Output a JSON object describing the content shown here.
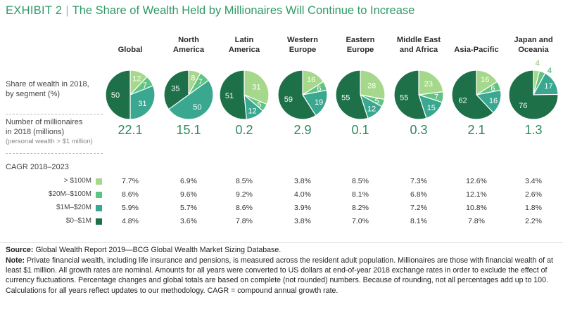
{
  "title": {
    "exhibit": "EXHIBIT 2",
    "text": "The Share of Wealth Held by Millionaires Will Continue to Increase"
  },
  "row_labels": {
    "share": [
      "Share of wealth in 2018,",
      "by segment (%)"
    ],
    "number": [
      "Number of millionaires",
      "in 2018 (millions)"
    ],
    "number_note": "(personal wealth > $1 million)",
    "cagr": "CAGR 2018–2023"
  },
  "cagr_segments": [
    {
      "label": "> $100M",
      "color": "#a6d88b"
    },
    {
      "label": "$20M–$100M",
      "color": "#5fc383"
    },
    {
      "label": "$1M–$20M",
      "color": "#3aa791"
    },
    {
      "label": "$0–$1M",
      "color": "#1d7048"
    }
  ],
  "colors": {
    "title": "#2f9a66",
    "big_number": "#2b8a5c"
  },
  "chart_data": {
    "type": "pie",
    "segments": [
      "> $100M",
      "$20M–$100M",
      "$1M–$20M",
      "$0–$1M"
    ],
    "regions": [
      {
        "name": [
          "Global"
        ],
        "shares": [
          12,
          7,
          31,
          50
        ],
        "millionaires": "22.1",
        "cagr": [
          "7.7%",
          "8.6%",
          "5.9%",
          "4.8%"
        ]
      },
      {
        "name": [
          "North",
          "America"
        ],
        "shares": [
          8,
          7,
          50,
          35
        ],
        "millionaires": "15.1",
        "cagr": [
          "6.9%",
          "9.6%",
          "5.7%",
          "3.6%"
        ]
      },
      {
        "name": [
          "Latin",
          "America"
        ],
        "shares": [
          31,
          5,
          12,
          51
        ],
        "millionaires": "0.2",
        "cagr": [
          "8.5%",
          "9.2%",
          "8.6%",
          "7.8%"
        ]
      },
      {
        "name": [
          "Western",
          "Europe"
        ],
        "shares": [
          16,
          6,
          19,
          59
        ],
        "millionaires": "2.9",
        "cagr": [
          "3.8%",
          "4.0%",
          "3.9%",
          "3.8%"
        ]
      },
      {
        "name": [
          "Eastern",
          "Europe"
        ],
        "shares": [
          28,
          5,
          12,
          55
        ],
        "millionaires": "0.1",
        "cagr": [
          "8.5%",
          "8.1%",
          "8.2%",
          "7.0%"
        ]
      },
      {
        "name": [
          "Middle East",
          "and Africa"
        ],
        "shares": [
          23,
          7,
          15,
          55
        ],
        "millionaires": "0.3",
        "cagr": [
          "7.3%",
          "6.8%",
          "7.2%",
          "8.1%"
        ]
      },
      {
        "name": [
          "Asia-Pacific"
        ],
        "shares": [
          16,
          6,
          16,
          62
        ],
        "millionaires": "2.1",
        "cagr": [
          "12.6%",
          "12.1%",
          "10.8%",
          "7.8%"
        ]
      },
      {
        "name": [
          "Japan and",
          "Oceania"
        ],
        "shares": [
          4,
          4,
          17,
          76
        ],
        "millionaires": "1.3",
        "cagr": [
          "3.4%",
          "2.6%",
          "1.8%",
          "2.2%"
        ]
      }
    ]
  },
  "footer": {
    "source_label": "Source:",
    "source_text": "Global Wealth Report 2019—BCG Global Wealth Market Sizing Database.",
    "note_label": "Note:",
    "note_text": "Private financial wealth, including life insurance and pensions, is measured across the resident adult population. Millionaires are those with financial wealth of at least $1 million. All growth rates are nominal. Amounts for all years were converted to US dollars at end-of-year 2018 exchange rates in order to exclude the effect of currency fluctuations. Percentage changes and global totals are based on complete (not rounded) numbers. Because of rounding, not all percentages add up to 100. Calculations for all years reflect updates to our methodology. CAGR = compound annual growth rate."
  }
}
